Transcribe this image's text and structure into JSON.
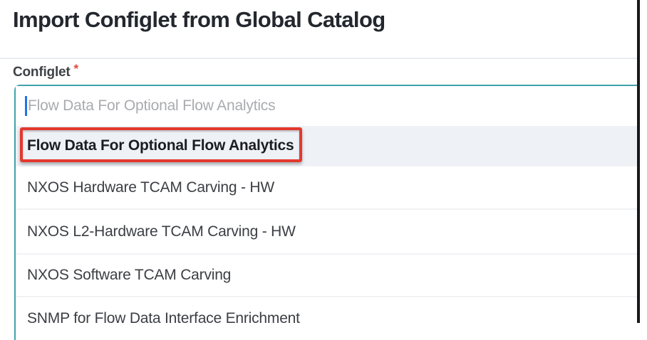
{
  "page": {
    "title": "Import Configlet from Global Catalog"
  },
  "form": {
    "field_label": "Configlet",
    "required_marker": "*",
    "combobox": {
      "placeholder": "Flow Data For Optional Flow Analytics",
      "options": [
        {
          "label": "Flow Data For Optional Flow Analytics",
          "highlighted": true
        },
        {
          "label": "NXOS Hardware TCAM Carving - HW",
          "highlighted": false
        },
        {
          "label": "NXOS L2-Hardware TCAM Carving - HW",
          "highlighted": false
        },
        {
          "label": "NXOS Software TCAM Carving",
          "highlighted": false
        },
        {
          "label": "SNMP for Flow Data Interface Enrichment",
          "highlighted": false
        }
      ]
    }
  },
  "annotation": {
    "type": "red-highlight-box",
    "target": "Flow Data For Optional Flow Analytics"
  },
  "colors": {
    "accent_teal": "#3fa3ac",
    "annotation_red": "#e4382e",
    "highlight_row_bg": "#eef1f6",
    "caret_blue": "#2471e8",
    "required_red": "#e0453a",
    "title_text": "#23272e",
    "option_text": "#3b3e43",
    "placeholder_text": "#a9abaf"
  }
}
